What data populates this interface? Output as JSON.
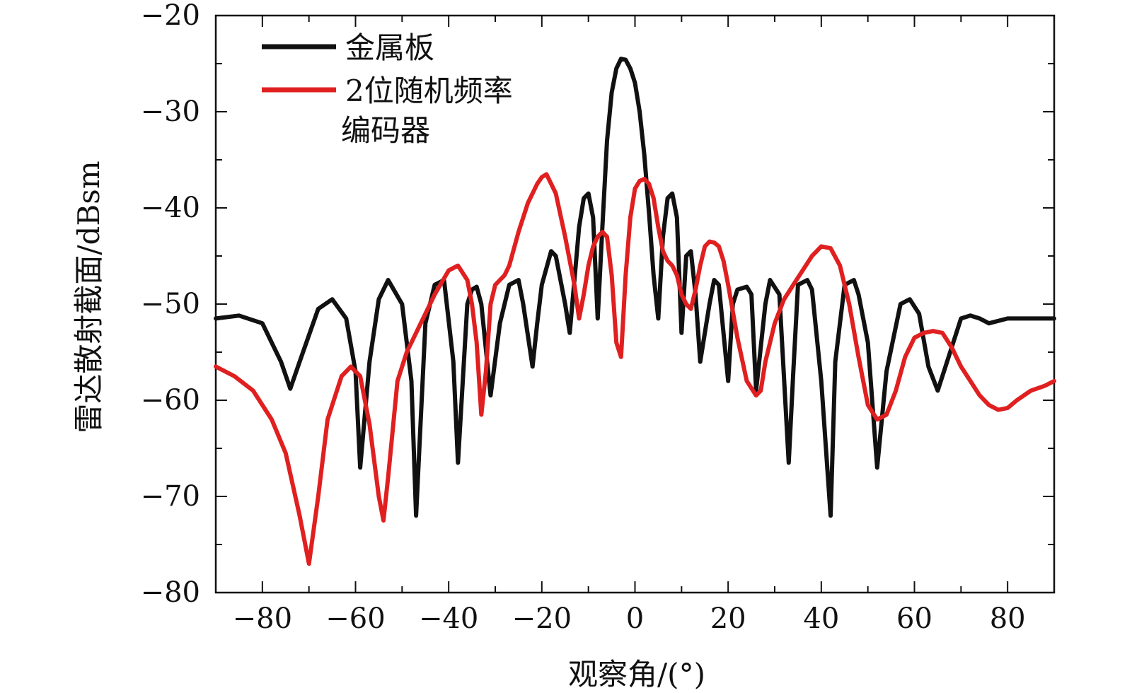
{
  "chart_data": {
    "type": "line",
    "title": "",
    "xlabel": "观察角/(°)",
    "ylabel": "雷达散射截面/dBsm",
    "xlim": [
      -90,
      90
    ],
    "ylim": [
      -80,
      -20
    ],
    "xticks": [
      -80,
      -60,
      -40,
      -20,
      0,
      20,
      40,
      60,
      80
    ],
    "yticks": [
      -80,
      -70,
      -60,
      -50,
      -40,
      -30,
      -20
    ],
    "xtick_labels": [
      "−80",
      "−60",
      "−40",
      "−20",
      "0",
      "20",
      "40",
      "60",
      "80"
    ],
    "ytick_labels": [
      "−80",
      "−70",
      "−60",
      "−50",
      "−40",
      "−30",
      "−20"
    ],
    "grid": false,
    "legend_position": "top-left",
    "series": [
      {
        "name": "金属板",
        "color": "#111111",
        "x": [
          -90,
          -85,
          -80,
          -76,
          -74,
          -72,
          -68,
          -65,
          -62,
          -60,
          -59,
          -57,
          -55,
          -53,
          -50,
          -48,
          -47,
          -45,
          -43,
          -41,
          -39,
          -38,
          -36,
          -35,
          -34,
          -33,
          -31,
          -29,
          -27,
          -25,
          -24,
          -22,
          -21,
          -20,
          -18,
          -17,
          -15,
          -14,
          -12,
          -11,
          -10,
          -9,
          -8,
          -7,
          -6,
          -5,
          -4,
          -3,
          -2,
          -1,
          0,
          1,
          2,
          3,
          4,
          5,
          6,
          7,
          8,
          9,
          10,
          11,
          12,
          13,
          14,
          16,
          17,
          18,
          20,
          21,
          22,
          24,
          25,
          26,
          28,
          29,
          31,
          33,
          34,
          35,
          37,
          38,
          40,
          42,
          43,
          45,
          47,
          48,
          50,
          52,
          54,
          57,
          59,
          61,
          63,
          65,
          67,
          70,
          72,
          74,
          76,
          80,
          85,
          90
        ],
        "y": [
          -51.5,
          -51.2,
          -52.0,
          -56.0,
          -58.8,
          -56.0,
          -50.5,
          -49.5,
          -51.5,
          -57.0,
          -67.0,
          -56.0,
          -49.5,
          -47.5,
          -50.0,
          -58.0,
          -72.0,
          -52.0,
          -48.0,
          -47.5,
          -56.0,
          -66.5,
          -50.0,
          -48.5,
          -48.2,
          -50.0,
          -59.5,
          -52.0,
          -48.0,
          -47.5,
          -50.0,
          -56.5,
          -52.0,
          -48.0,
          -44.5,
          -45.0,
          -50.0,
          -53.0,
          -42.0,
          -39.0,
          -38.5,
          -41.0,
          -51.5,
          -42.0,
          -33.0,
          -28.0,
          -25.5,
          -24.5,
          -24.6,
          -25.5,
          -27.0,
          -30.0,
          -34.5,
          -40.5,
          -47.0,
          -51.5,
          -43.0,
          -39.0,
          -38.5,
          -41.0,
          -53.0,
          -45.0,
          -44.5,
          -49.0,
          -56.0,
          -50.0,
          -47.5,
          -48.0,
          -58.0,
          -50.0,
          -48.5,
          -48.2,
          -49.0,
          -59.0,
          -50.0,
          -47.5,
          -49.0,
          -66.5,
          -57.0,
          -48.0,
          -47.5,
          -48.5,
          -58.0,
          -72.0,
          -56.0,
          -48.0,
          -47.5,
          -49.0,
          -54.0,
          -67.0,
          -57.0,
          -50.0,
          -49.5,
          -51.0,
          -56.5,
          -59.0,
          -56.0,
          -51.5,
          -51.2,
          -51.5,
          -52.0,
          -51.5,
          -51.5,
          -51.5
        ]
      },
      {
        "name": "2位随机频率编码器",
        "color": "#e02020",
        "x": [
          -90,
          -86,
          -82,
          -78,
          -75,
          -72,
          -70,
          -68,
          -66,
          -63,
          -61,
          -59,
          -57,
          -55,
          -54,
          -53,
          -51,
          -49,
          -47,
          -45,
          -43,
          -40,
          -38,
          -36,
          -35,
          -34,
          -33,
          -32,
          -31,
          -30,
          -28,
          -27,
          -25,
          -23,
          -21,
          -20,
          -19,
          -17,
          -15,
          -13,
          -12,
          -11,
          -10,
          -9,
          -8,
          -7,
          -6,
          -5,
          -4,
          -3,
          -2,
          -1,
          0,
          1,
          2,
          3,
          4,
          5,
          6,
          7,
          8,
          9,
          10,
          11,
          12,
          13,
          14,
          15,
          16,
          17,
          18,
          19,
          20,
          22,
          24,
          26,
          27,
          28,
          30,
          32,
          34,
          36,
          38,
          40,
          42,
          44,
          46,
          48,
          50,
          52,
          54,
          56,
          58,
          60,
          62,
          64,
          66,
          68,
          70,
          72,
          74,
          76,
          78,
          80,
          82,
          85,
          88,
          90
        ],
        "y": [
          -56.5,
          -57.5,
          -59.0,
          -62.0,
          -65.5,
          -72.0,
          -77.0,
          -70.0,
          -62.0,
          -57.5,
          -56.5,
          -57.5,
          -62.5,
          -70.0,
          -72.5,
          -68.0,
          -58.0,
          -55.0,
          -53.0,
          -51.0,
          -49.0,
          -46.5,
          -46.0,
          -47.5,
          -50.0,
          -54.0,
          -61.5,
          -57.0,
          -50.0,
          -48.0,
          -47.0,
          -46.0,
          -42.5,
          -39.5,
          -37.5,
          -36.8,
          -36.5,
          -38.5,
          -43.0,
          -48.0,
          -51.5,
          -49.0,
          -46.0,
          -44.0,
          -43.0,
          -42.5,
          -43.0,
          -47.0,
          -54.0,
          -55.5,
          -47.0,
          -41.0,
          -38.0,
          -37.2,
          -37.0,
          -37.5,
          -39.0,
          -42.0,
          -44.5,
          -45.5,
          -46.0,
          -47.0,
          -49.0,
          -50.0,
          -50.5,
          -48.5,
          -46.0,
          -44.0,
          -43.5,
          -43.6,
          -44.0,
          -45.5,
          -48.0,
          -53.5,
          -58.0,
          -59.5,
          -59.0,
          -56.0,
          -52.0,
          -49.5,
          -48.0,
          -46.5,
          -45.0,
          -44.0,
          -44.2,
          -46.0,
          -50.0,
          -55.5,
          -60.5,
          -62.0,
          -61.5,
          -59.0,
          -55.5,
          -53.5,
          -53.0,
          -52.8,
          -53.0,
          -54.5,
          -56.5,
          -58.0,
          -59.5,
          -60.5,
          -61.0,
          -60.8,
          -60.0,
          -59.0,
          -58.5,
          -58.0
        ]
      }
    ]
  }
}
